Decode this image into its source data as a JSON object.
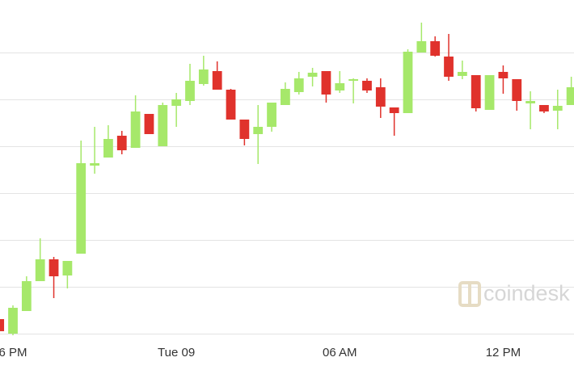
{
  "chart_data": {
    "type": "candlestick",
    "watermark": "coindesk",
    "up_color": "#a6e86a",
    "down_color": "#e0322c",
    "grid": true,
    "xlim": [
      -0.475,
      20.6
    ],
    "xticks": [
      {
        "value": 0,
        "label": "6 PM"
      },
      {
        "value": 6,
        "label": "Tue 09"
      },
      {
        "value": 12,
        "label": "06 AM"
      },
      {
        "value": 18,
        "label": "12 PM"
      }
    ],
    "ylim": [
      -45,
      413
    ],
    "yticks": [
      0,
      58,
      116,
      174,
      232,
      290,
      348
    ],
    "x": [
      -0.5,
      0,
      0.5,
      1,
      1.5,
      2,
      2.5,
      3,
      3.5,
      4,
      4.5,
      5,
      5.5,
      6,
      6.5,
      7,
      7.5,
      8,
      8.5,
      9,
      9.5,
      10,
      10.5,
      11,
      11.5,
      12,
      12.5,
      13,
      13.5,
      14,
      14.5,
      15,
      15.5,
      16,
      16.5,
      17,
      17.5,
      18,
      18.5,
      19,
      19.5,
      20,
      20.5
    ],
    "open": [
      18,
      0,
      28,
      65,
      92,
      72,
      99,
      208,
      218,
      245,
      230,
      272,
      232,
      282,
      288,
      309,
      325,
      302,
      265,
      247,
      256,
      283,
      299,
      318,
      325,
      301,
      313,
      313,
      305,
      280,
      273,
      348,
      362,
      343,
      319,
      320,
      277,
      324,
      315,
      285,
      283,
      276,
      283
    ],
    "high": [
      21,
      35,
      71,
      118,
      95,
      90,
      239,
      256,
      258,
      251,
      295,
      272,
      286,
      298,
      334,
      344,
      337,
      303,
      265,
      283,
      286,
      311,
      324,
      329,
      325,
      325,
      316,
      316,
      316,
      280,
      352,
      385,
      368,
      371,
      338,
      320,
      320,
      332,
      315,
      300,
      283,
      302,
      318
    ],
    "low": [
      1,
      -2,
      28,
      65,
      44,
      56,
      99,
      198,
      218,
      222,
      230,
      247,
      232,
      256,
      283,
      307,
      302,
      265,
      233,
      210,
      250,
      283,
      296,
      306,
      286,
      298,
      285,
      298,
      267,
      245,
      273,
      348,
      343,
      313,
      315,
      275,
      277,
      297,
      276,
      253,
      273,
      253,
      283
    ],
    "close": [
      3,
      32,
      65,
      92,
      71,
      90,
      211,
      211,
      241,
      227,
      275,
      247,
      283,
      290,
      313,
      327,
      302,
      265,
      241,
      256,
      286,
      303,
      316,
      323,
      296,
      310,
      315,
      301,
      281,
      273,
      349,
      362,
      344,
      318,
      324,
      279,
      320,
      316,
      288,
      288,
      275,
      282,
      305
    ]
  }
}
